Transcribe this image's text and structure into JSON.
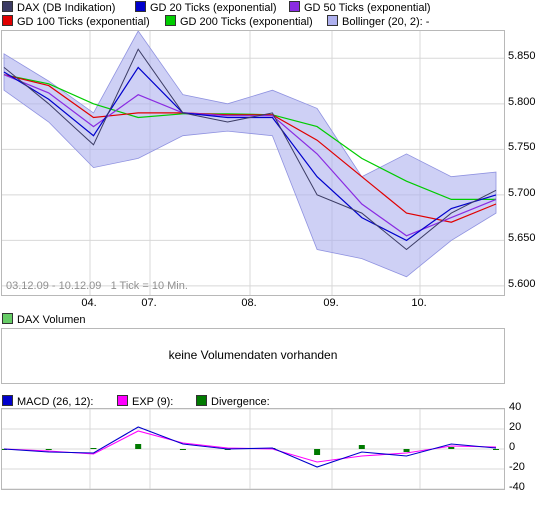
{
  "colors": {
    "dax": "#3c3c64",
    "gd20": "#0000cc",
    "gd50": "#8a2be2",
    "gd100": "#e00000",
    "gd200": "#00cc00",
    "bollinger": "#aeb0ee",
    "macd": "#0000cc",
    "exp": "#ff00ff",
    "divergence": "#007a00"
  },
  "legend": {
    "dax": "DAX (DB Indikation)",
    "gd20": "GD 20 Ticks (exponential)",
    "gd50": "GD 50 Ticks (exponential)",
    "gd100": "GD 100 Ticks (exponential)",
    "gd200": "GD 200 Ticks (exponential)",
    "bollinger": "Bollinger (20, 2):",
    "bollinger_value": "-"
  },
  "info_text": "03.12.09 - 10.12.09   1 Tick = 10 Min.",
  "volume": {
    "legend": "DAX Volumen",
    "message": "keine Volumendaten vorhanden"
  },
  "macd_legend": {
    "macd": "MACD (26, 12):",
    "exp": "EXP (9):",
    "divergence": "Divergence:"
  },
  "chart_data": [
    {
      "type": "line",
      "title": "",
      "x_ticks": [
        "04.",
        "07.",
        "08.",
        "09.",
        "10."
      ],
      "y_ticks": [
        "5.600",
        "5.650",
        "5.700",
        "5.750",
        "5.800",
        "5.850"
      ],
      "ylim": [
        5590,
        5880
      ],
      "grid": true,
      "x": [
        "03.12.",
        "03.12.",
        "04.12.",
        "04.12.",
        "07.12.",
        "07.12.",
        "08.12.",
        "08.12.",
        "09.12.",
        "09.12.",
        "10.12.",
        "10.12."
      ],
      "series": [
        {
          "name": "DAX (DB Indikation)",
          "values": [
            5840,
            5800,
            5755,
            5860,
            5790,
            5780,
            5790,
            5700,
            5680,
            5640,
            5680,
            5705
          ]
        },
        {
          "name": "GD 20 Ticks (exponential)",
          "values": [
            5835,
            5805,
            5765,
            5840,
            5790,
            5785,
            5785,
            5720,
            5675,
            5650,
            5685,
            5700
          ]
        },
        {
          "name": "GD 50 Ticks (exponential)",
          "values": [
            5832,
            5812,
            5775,
            5810,
            5790,
            5787,
            5787,
            5745,
            5690,
            5655,
            5675,
            5695
          ]
        },
        {
          "name": "GD 100 Ticks (exponential)",
          "values": [
            5832,
            5820,
            5785,
            5790,
            5790,
            5788,
            5788,
            5760,
            5720,
            5680,
            5670,
            5690
          ]
        },
        {
          "name": "GD 200 Ticks (exponential)",
          "values": [
            5832,
            5822,
            5800,
            5785,
            5789,
            5789,
            5788,
            5775,
            5740,
            5715,
            5695,
            5695
          ]
        },
        {
          "name": "Bollinger (20, 2)",
          "upper": [
            5855,
            5825,
            5790,
            5880,
            5810,
            5800,
            5815,
            5795,
            5720,
            5745,
            5720,
            5725
          ],
          "lower": [
            5815,
            5780,
            5730,
            5740,
            5765,
            5770,
            5765,
            5640,
            5630,
            5610,
            5650,
            5680
          ]
        }
      ]
    },
    {
      "type": "bar",
      "title": "",
      "series": [
        {
          "name": "DAX Volumen",
          "values": []
        }
      ]
    },
    {
      "type": "line",
      "title": "",
      "y_ticks": [
        "-40",
        "-20",
        "0",
        "20",
        "40"
      ],
      "ylim": [
        -40,
        40
      ],
      "grid": true,
      "x": [
        "03.12.",
        "03.12.",
        "04.12.",
        "04.12.",
        "07.12.",
        "07.12.",
        "08.12.",
        "08.12.",
        "09.12.",
        "09.12.",
        "10.12.",
        "10.12."
      ],
      "series": [
        {
          "name": "MACD (26, 12)",
          "values": [
            0,
            -3,
            -4,
            22,
            5,
            0,
            1,
            -18,
            -3,
            -7,
            5,
            1
          ]
        },
        {
          "name": "EXP (9)",
          "values": [
            0,
            -2,
            -5,
            18,
            6,
            1,
            0,
            -13,
            -7,
            -4,
            3,
            2
          ]
        },
        {
          "name": "Divergence",
          "values": [
            0,
            -1,
            1,
            5,
            -1,
            0,
            1,
            -6,
            4,
            -3,
            2,
            -1
          ]
        }
      ]
    }
  ]
}
